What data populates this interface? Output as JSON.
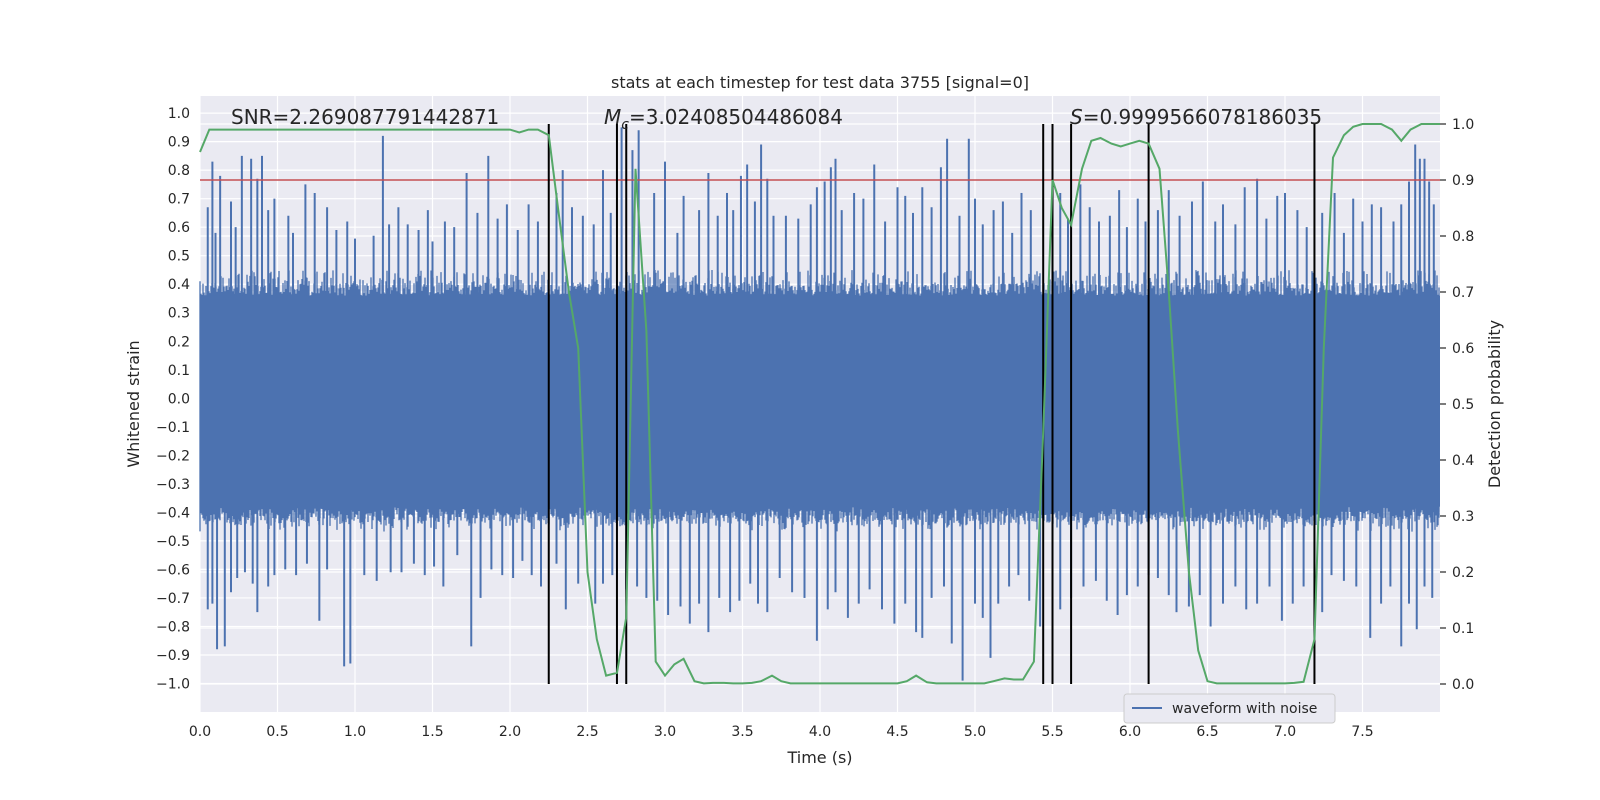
{
  "chart_data": {
    "type": "line",
    "title": "stats at each timestep for test data 3755 [signal=0]",
    "xlabel": "Time (s)",
    "ylabel": "Whitened strain",
    "y2label": "Detection probability",
    "xlim": [
      0,
      8
    ],
    "ylim": [
      -1.1,
      1.06
    ],
    "y2lim": [
      -0.05,
      1.05
    ],
    "xticks": [
      0.0,
      0.5,
      1.0,
      1.5,
      2.0,
      2.5,
      3.0,
      3.5,
      4.0,
      4.5,
      5.0,
      5.5,
      6.0,
      6.5,
      7.0,
      7.5
    ],
    "xtick_labels": [
      "0.0",
      "0.5",
      "1.0",
      "1.5",
      "2.0",
      "2.5",
      "3.0",
      "3.5",
      "4.0",
      "4.5",
      "5.0",
      "5.5",
      "6.0",
      "6.5",
      "7.0",
      "7.5"
    ],
    "yticks": [
      -1.0,
      -0.9,
      -0.8,
      -0.7,
      -0.6,
      -0.5,
      -0.4,
      -0.3,
      -0.2,
      -0.1,
      0.0,
      0.1,
      0.2,
      0.3,
      0.4,
      0.5,
      0.6,
      0.7,
      0.8,
      0.9,
      1.0
    ],
    "ytick_labels": [
      "−1.0",
      "−0.9",
      "−0.8",
      "−0.7",
      "−0.6",
      "−0.5",
      "−0.4",
      "−0.3",
      "−0.2",
      "−0.1",
      "0.0",
      "0.1",
      "0.2",
      "0.3",
      "0.4",
      "0.5",
      "0.6",
      "0.7",
      "0.8",
      "0.9",
      "1.0"
    ],
    "y2ticks": [
      0.0,
      0.1,
      0.2,
      0.3,
      0.4,
      0.5,
      0.6,
      0.7,
      0.8,
      0.9,
      1.0
    ],
    "y2tick_labels": [
      "0.0",
      "0.1",
      "0.2",
      "0.3",
      "0.4",
      "0.5",
      "0.6",
      "0.7",
      "0.8",
      "0.9",
      "1.0"
    ],
    "annotations": {
      "snr": "SNR=2.269087791442871",
      "mc_symbol": "M",
      "mc_sub": "c",
      "mc_value": "=3.02408504486084",
      "s_symbol": "S",
      "s_value": "=0.9999566078186035"
    },
    "threshold": {
      "value": 0.9,
      "axis": "y2",
      "color": "#c44e52"
    },
    "vlines_x": [
      2.25,
      2.69,
      2.75,
      5.44,
      5.5,
      5.62,
      6.12,
      7.19
    ],
    "waveform": {
      "name": "waveform with noise",
      "color": "#4c72b0",
      "envelope_upper": 0.45,
      "envelope_lower": -0.42,
      "dense_region_upper": 0.36,
      "dense_region_lower": -0.38,
      "spikes_up": [
        [
          0.05,
          0.67
        ],
        [
          0.08,
          0.83
        ],
        [
          0.1,
          0.58
        ],
        [
          0.13,
          0.78
        ],
        [
          0.2,
          0.69
        ],
        [
          0.23,
          0.6
        ],
        [
          0.27,
          0.85
        ],
        [
          0.33,
          0.84
        ],
        [
          0.37,
          0.77
        ],
        [
          0.4,
          0.85
        ],
        [
          0.44,
          0.66
        ],
        [
          0.48,
          0.7
        ],
        [
          0.57,
          0.64
        ],
        [
          0.6,
          0.58
        ],
        [
          0.68,
          0.75
        ],
        [
          0.74,
          0.72
        ],
        [
          0.82,
          0.67
        ],
        [
          0.88,
          0.59
        ],
        [
          0.95,
          0.62
        ],
        [
          1.0,
          0.56
        ],
        [
          1.12,
          0.57
        ],
        [
          1.18,
          0.92
        ],
        [
          1.22,
          0.61
        ],
        [
          1.28,
          0.67
        ],
        [
          1.34,
          0.61
        ],
        [
          1.41,
          0.59
        ],
        [
          1.47,
          0.66
        ],
        [
          1.5,
          0.55
        ],
        [
          1.58,
          0.62
        ],
        [
          1.64,
          0.6
        ],
        [
          1.72,
          0.79
        ],
        [
          1.79,
          0.65
        ],
        [
          1.86,
          0.85
        ],
        [
          1.92,
          0.63
        ],
        [
          1.98,
          0.68
        ],
        [
          2.05,
          0.59
        ],
        [
          2.12,
          0.68
        ],
        [
          2.18,
          0.62
        ],
        [
          2.3,
          0.72
        ],
        [
          2.34,
          0.8
        ],
        [
          2.4,
          0.67
        ],
        [
          2.47,
          0.64
        ],
        [
          2.54,
          0.61
        ],
        [
          2.6,
          0.8
        ],
        [
          2.65,
          0.65
        ],
        [
          2.72,
          0.95
        ],
        [
          2.79,
          0.87
        ],
        [
          2.83,
          0.94
        ],
        [
          2.93,
          0.72
        ],
        [
          3.0,
          0.83
        ],
        [
          3.08,
          0.58
        ],
        [
          3.12,
          0.71
        ],
        [
          3.22,
          0.66
        ],
        [
          3.28,
          0.79
        ],
        [
          3.34,
          0.64
        ],
        [
          3.4,
          0.72
        ],
        [
          3.44,
          0.66
        ],
        [
          3.49,
          0.78
        ],
        [
          3.53,
          0.82
        ],
        [
          3.58,
          0.69
        ],
        [
          3.62,
          0.89
        ],
        [
          3.66,
          0.77
        ],
        [
          3.7,
          0.64
        ],
        [
          3.78,
          0.64
        ],
        [
          3.86,
          0.63
        ],
        [
          3.94,
          0.68
        ],
        [
          3.98,
          0.74
        ],
        [
          4.03,
          0.76
        ],
        [
          4.07,
          0.81
        ],
        [
          4.1,
          0.84
        ],
        [
          4.14,
          0.66
        ],
        [
          4.22,
          0.72
        ],
        [
          4.28,
          0.7
        ],
        [
          4.35,
          0.82
        ],
        [
          4.42,
          0.62
        ],
        [
          4.5,
          0.74
        ],
        [
          4.55,
          0.71
        ],
        [
          4.6,
          0.65
        ],
        [
          4.66,
          0.74
        ],
        [
          4.72,
          0.67
        ],
        [
          4.78,
          0.81
        ],
        [
          4.82,
          0.91
        ],
        [
          4.9,
          0.64
        ],
        [
          4.96,
          0.91
        ],
        [
          5.0,
          0.7
        ],
        [
          5.05,
          0.61
        ],
        [
          5.12,
          0.66
        ],
        [
          5.18,
          0.69
        ],
        [
          5.24,
          0.58
        ],
        [
          5.3,
          0.72
        ],
        [
          5.36,
          0.66
        ],
        [
          5.55,
          0.72
        ],
        [
          5.6,
          0.63
        ],
        [
          5.68,
          0.75
        ],
        [
          5.74,
          0.67
        ],
        [
          5.8,
          0.62
        ],
        [
          5.87,
          0.64
        ],
        [
          5.93,
          0.73
        ],
        [
          5.98,
          0.6
        ],
        [
          6.05,
          0.7
        ],
        [
          6.1,
          0.62
        ],
        [
          6.18,
          0.66
        ],
        [
          6.25,
          0.73
        ],
        [
          6.32,
          0.64
        ],
        [
          6.4,
          0.69
        ],
        [
          6.47,
          0.76
        ],
        [
          6.55,
          0.62
        ],
        [
          6.6,
          0.68
        ],
        [
          6.68,
          0.61
        ],
        [
          6.74,
          0.74
        ],
        [
          6.82,
          0.77
        ],
        [
          6.88,
          0.63
        ],
        [
          6.95,
          0.71
        ],
        [
          7.0,
          0.72
        ],
        [
          7.08,
          0.66
        ],
        [
          7.14,
          0.6
        ],
        [
          7.24,
          0.65
        ],
        [
          7.32,
          0.72
        ],
        [
          7.38,
          0.58
        ],
        [
          7.44,
          0.7
        ],
        [
          7.5,
          0.62
        ],
        [
          7.56,
          0.68
        ],
        [
          7.62,
          0.67
        ],
        [
          7.7,
          0.62
        ],
        [
          7.75,
          0.68
        ],
        [
          7.8,
          0.76
        ],
        [
          7.84,
          0.89
        ],
        [
          7.87,
          0.84
        ],
        [
          7.9,
          0.84
        ],
        [
          7.93,
          0.76
        ],
        [
          7.96,
          0.68
        ]
      ],
      "spikes_down": [
        [
          0.05,
          -0.74
        ],
        [
          0.08,
          -0.72
        ],
        [
          0.11,
          -0.88
        ],
        [
          0.16,
          -0.87
        ],
        [
          0.2,
          -0.68
        ],
        [
          0.24,
          -0.63
        ],
        [
          0.29,
          -0.61
        ],
        [
          0.34,
          -0.65
        ],
        [
          0.37,
          -0.75
        ],
        [
          0.44,
          -0.66
        ],
        [
          0.48,
          -0.62
        ],
        [
          0.55,
          -0.6
        ],
        [
          0.62,
          -0.62
        ],
        [
          0.69,
          -0.58
        ],
        [
          0.77,
          -0.78
        ],
        [
          0.82,
          -0.6
        ],
        [
          0.93,
          -0.94
        ],
        [
          0.97,
          -0.93
        ],
        [
          1.06,
          -0.62
        ],
        [
          1.14,
          -0.64
        ],
        [
          1.23,
          -0.61
        ],
        [
          1.3,
          -0.61
        ],
        [
          1.38,
          -0.58
        ],
        [
          1.45,
          -0.62
        ],
        [
          1.51,
          -0.59
        ],
        [
          1.57,
          -0.66
        ],
        [
          1.66,
          -0.55
        ],
        [
          1.75,
          -0.87
        ],
        [
          1.81,
          -0.7
        ],
        [
          1.88,
          -0.6
        ],
        [
          1.95,
          -0.62
        ],
        [
          2.02,
          -0.63
        ],
        [
          2.08,
          -0.57
        ],
        [
          2.14,
          -0.62
        ],
        [
          2.2,
          -0.66
        ],
        [
          2.3,
          -0.58
        ],
        [
          2.36,
          -0.74
        ],
        [
          2.44,
          -0.65
        ],
        [
          2.55,
          -0.72
        ],
        [
          2.6,
          -0.65
        ],
        [
          2.66,
          -0.62
        ],
        [
          2.75,
          -0.67
        ],
        [
          2.82,
          -0.66
        ],
        [
          2.88,
          -0.7
        ],
        [
          2.95,
          -0.71
        ],
        [
          3.02,
          -0.76
        ],
        [
          3.1,
          -0.73
        ],
        [
          3.16,
          -0.79
        ],
        [
          3.22,
          -0.72
        ],
        [
          3.28,
          -0.82
        ],
        [
          3.35,
          -0.7
        ],
        [
          3.42,
          -0.75
        ],
        [
          3.48,
          -0.71
        ],
        [
          3.55,
          -0.65
        ],
        [
          3.6,
          -0.72
        ],
        [
          3.66,
          -0.75
        ],
        [
          3.74,
          -0.63
        ],
        [
          3.82,
          -0.68
        ],
        [
          3.9,
          -0.7
        ],
        [
          3.98,
          -0.85
        ],
        [
          4.05,
          -0.74
        ],
        [
          4.1,
          -0.68
        ],
        [
          4.18,
          -0.77
        ],
        [
          4.25,
          -0.72
        ],
        [
          4.32,
          -0.67
        ],
        [
          4.4,
          -0.74
        ],
        [
          4.48,
          -0.79
        ],
        [
          4.55,
          -0.72
        ],
        [
          4.62,
          -0.82
        ],
        [
          4.66,
          -0.84
        ],
        [
          4.72,
          -0.7
        ],
        [
          4.8,
          -0.66
        ],
        [
          4.85,
          -0.86
        ],
        [
          4.92,
          -0.99
        ],
        [
          5.0,
          -0.72
        ],
        [
          5.05,
          -0.77
        ],
        [
          5.1,
          -0.91
        ],
        [
          5.15,
          -0.72
        ],
        [
          5.22,
          -0.66
        ],
        [
          5.28,
          -0.62
        ],
        [
          5.35,
          -0.71
        ],
        [
          5.42,
          -0.8
        ],
        [
          5.55,
          -0.74
        ],
        [
          5.62,
          -0.7
        ],
        [
          5.7,
          -0.66
        ],
        [
          5.78,
          -0.64
        ],
        [
          5.85,
          -0.71
        ],
        [
          5.92,
          -0.76
        ],
        [
          5.98,
          -0.69
        ],
        [
          6.05,
          -0.66
        ],
        [
          6.12,
          -0.62
        ],
        [
          6.18,
          -0.63
        ],
        [
          6.25,
          -0.69
        ],
        [
          6.3,
          -0.75
        ],
        [
          6.38,
          -0.73
        ],
        [
          6.45,
          -0.69
        ],
        [
          6.52,
          -0.8
        ],
        [
          6.6,
          -0.72
        ],
        [
          6.68,
          -0.66
        ],
        [
          6.75,
          -0.74
        ],
        [
          6.82,
          -0.72
        ],
        [
          6.9,
          -0.66
        ],
        [
          6.98,
          -0.78
        ],
        [
          7.05,
          -0.72
        ],
        [
          7.12,
          -0.66
        ],
        [
          7.24,
          -0.75
        ],
        [
          7.3,
          -0.62
        ],
        [
          7.38,
          -0.64
        ],
        [
          7.46,
          -0.66
        ],
        [
          7.55,
          -0.84
        ],
        [
          7.62,
          -0.72
        ],
        [
          7.68,
          -0.66
        ],
        [
          7.75,
          -0.87
        ],
        [
          7.8,
          -0.72
        ],
        [
          7.85,
          -0.81
        ],
        [
          7.9,
          -0.66
        ],
        [
          7.95,
          -0.7
        ]
      ]
    },
    "probability": {
      "color": "#55a868",
      "x": [
        0.0,
        0.06,
        0.12,
        0.25,
        0.5,
        0.75,
        1.0,
        1.25,
        1.5,
        1.75,
        2.0,
        2.06,
        2.12,
        2.18,
        2.25,
        2.31,
        2.38,
        2.44,
        2.5,
        2.56,
        2.62,
        2.69,
        2.75,
        2.81,
        2.88,
        2.94,
        3.0,
        3.06,
        3.12,
        3.19,
        3.25,
        3.31,
        3.38,
        3.44,
        3.5,
        3.56,
        3.62,
        3.69,
        3.75,
        3.81,
        3.88,
        3.94,
        4.0,
        4.25,
        4.5,
        4.56,
        4.62,
        4.69,
        4.75,
        4.81,
        4.88,
        4.94,
        5.0,
        5.06,
        5.12,
        5.19,
        5.25,
        5.31,
        5.38,
        5.44,
        5.5,
        5.56,
        5.62,
        5.69,
        5.75,
        5.81,
        5.88,
        5.94,
        6.0,
        6.06,
        6.12,
        6.19,
        6.25,
        6.31,
        6.38,
        6.44,
        6.5,
        6.56,
        6.62,
        6.69,
        6.75,
        6.81,
        6.88,
        6.94,
        7.0,
        7.06,
        7.12,
        7.19,
        7.25,
        7.31,
        7.38,
        7.44,
        7.5,
        7.56,
        7.62,
        7.69,
        7.75,
        7.81,
        7.88,
        7.94,
        8.0
      ],
      "y": [
        0.95,
        0.99,
        0.99,
        0.99,
        0.99,
        0.99,
        0.99,
        0.99,
        0.99,
        0.99,
        0.99,
        0.985,
        0.99,
        0.99,
        0.98,
        0.85,
        0.7,
        0.6,
        0.2,
        0.08,
        0.015,
        0.02,
        0.12,
        0.92,
        0.63,
        0.04,
        0.015,
        0.035,
        0.045,
        0.005,
        0.001,
        0.002,
        0.002,
        0.001,
        0.001,
        0.002,
        0.005,
        0.015,
        0.005,
        0.001,
        0.001,
        0.001,
        0.001,
        0.001,
        0.001,
        0.005,
        0.015,
        0.003,
        0.001,
        0.001,
        0.001,
        0.001,
        0.001,
        0.001,
        0.005,
        0.01,
        0.008,
        0.008,
        0.04,
        0.45,
        0.9,
        0.85,
        0.82,
        0.92,
        0.97,
        0.975,
        0.965,
        0.96,
        0.965,
        0.97,
        0.965,
        0.92,
        0.7,
        0.45,
        0.2,
        0.06,
        0.005,
        0.001,
        0.001,
        0.001,
        0.001,
        0.001,
        0.001,
        0.001,
        0.001,
        0.002,
        0.004,
        0.08,
        0.6,
        0.94,
        0.98,
        0.995,
        1.0,
        1.0,
        1.0,
        0.99,
        0.97,
        0.99,
        1.0,
        1.0,
        1.0
      ]
    },
    "legend": {
      "entries": [
        "waveform with noise"
      ],
      "placement": "bottom-right"
    }
  }
}
